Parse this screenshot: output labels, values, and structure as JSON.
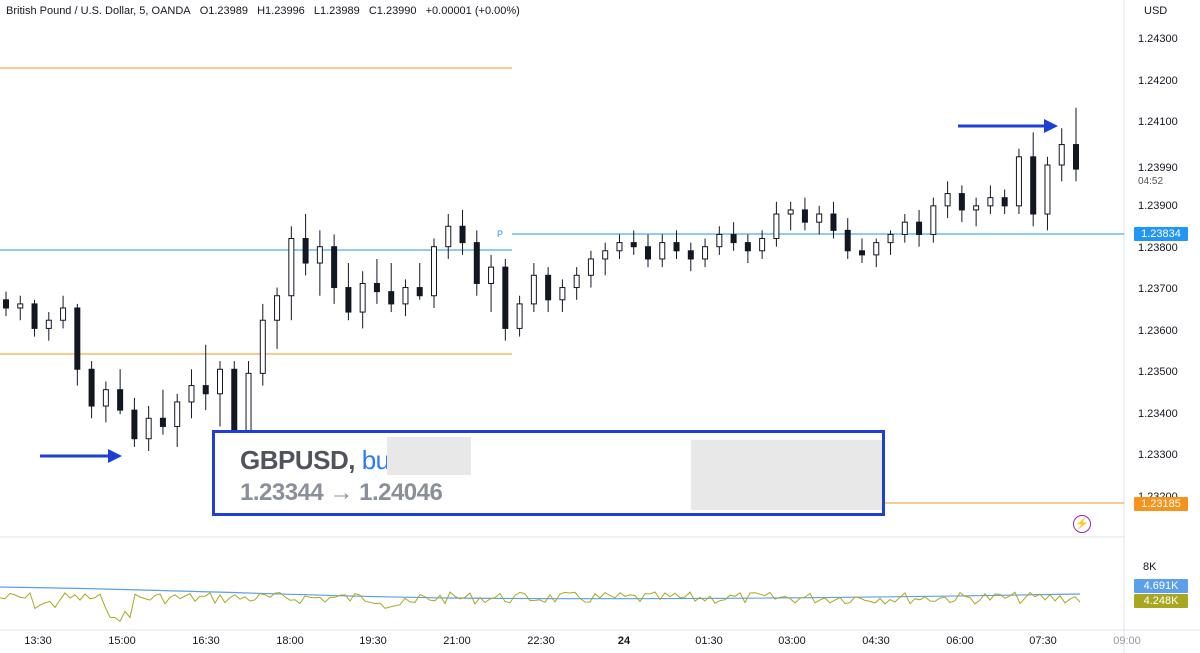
{
  "header": {
    "symbol_title": "British Pound / U.S. Dollar, 5, OANDA",
    "open": "O1.23989",
    "high": "H1.23996",
    "low": "L1.23989",
    "close": "C1.23990",
    "change": "+0.00001 (+0.00%)"
  },
  "price_axis": {
    "currency": "USD",
    "ticks": [
      "1.24300",
      "1.24200",
      "1.24100",
      "1.23990",
      "1.23900",
      "1.23800",
      "1.23700",
      "1.23600",
      "1.23500",
      "1.23400",
      "1.23300",
      "1.23200"
    ],
    "countdown": "04:52"
  },
  "price_labels": {
    "current_line": "1.23834",
    "lower_orange": "1.23185"
  },
  "time_axis": {
    "labels": [
      "13:30",
      "15:00",
      "16:30",
      "18:00",
      "19:30",
      "21:00",
      "22:30",
      "24",
      "01:30",
      "03:00",
      "04:30",
      "06:00",
      "07:30",
      "09:00"
    ]
  },
  "pivot_label": "P",
  "volume": {
    "axis_label": "8K",
    "ma_value": "4.691K",
    "vol_value": "4.248K"
  },
  "annotation": {
    "pair": "GBPUSD,",
    "side": "buy",
    "entry_exit": "1.23344 → 1.24046"
  },
  "colors": {
    "up": "#131722",
    "down": "#131722",
    "blue_line": "#2196f3",
    "orange_line": "#f7931a",
    "arrow": "#1e3fd6",
    "vol_ma": "#5ba0e8",
    "vol_line": "#a8a820",
    "accent_blue": "#2962ff"
  },
  "chart_data": {
    "type": "candlestick",
    "y_range": [
      1.2318,
      1.2435
    ],
    "ohlc_approx": [
      [
        1.2367,
        1.2369,
        1.2363,
        1.2365
      ],
      [
        1.2365,
        1.2368,
        1.2362,
        1.2366
      ],
      [
        1.2366,
        1.2367,
        1.2358,
        1.236
      ],
      [
        1.236,
        1.2364,
        1.2357,
        1.2362
      ],
      [
        1.2362,
        1.2368,
        1.236,
        1.2365
      ],
      [
        1.2365,
        1.2366,
        1.2346,
        1.235
      ],
      [
        1.235,
        1.2352,
        1.2338,
        1.2341
      ],
      [
        1.2341,
        1.2347,
        1.2337,
        1.2345
      ],
      [
        1.2345,
        1.235,
        1.2339,
        1.234
      ],
      [
        1.234,
        1.2343,
        1.2331,
        1.2333
      ],
      [
        1.2333,
        1.2341,
        1.233,
        1.2338
      ],
      [
        1.2338,
        1.2345,
        1.2334,
        1.2336
      ],
      [
        1.2336,
        1.2344,
        1.2331,
        1.2342
      ],
      [
        1.2342,
        1.235,
        1.2338,
        1.2346
      ],
      [
        1.2346,
        1.2356,
        1.234,
        1.2344
      ],
      [
        1.2344,
        1.2352,
        1.2336,
        1.235
      ],
      [
        1.235,
        1.2352,
        1.2324,
        1.2328
      ],
      [
        1.2328,
        1.2352,
        1.2323,
        1.2349
      ],
      [
        1.2349,
        1.2366,
        1.2346,
        1.2362
      ],
      [
        1.2362,
        1.237,
        1.2355,
        1.2368
      ],
      [
        1.2368,
        1.2385,
        1.2362,
        1.2382
      ],
      [
        1.2382,
        1.2388,
        1.2373,
        1.2376
      ],
      [
        1.2376,
        1.2384,
        1.2368,
        1.238
      ],
      [
        1.238,
        1.2383,
        1.2366,
        1.237
      ],
      [
        1.237,
        1.2376,
        1.2362,
        1.2364
      ],
      [
        1.2364,
        1.2374,
        1.236,
        1.2371
      ],
      [
        1.2371,
        1.2377,
        1.2366,
        1.2369
      ],
      [
        1.2369,
        1.2376,
        1.2364,
        1.2366
      ],
      [
        1.2366,
        1.2372,
        1.2363,
        1.237
      ],
      [
        1.237,
        1.2376,
        1.2367,
        1.2368
      ],
      [
        1.2368,
        1.2382,
        1.2365,
        1.238
      ],
      [
        1.238,
        1.2388,
        1.2377,
        1.2385
      ],
      [
        1.2385,
        1.2389,
        1.2378,
        1.2381
      ],
      [
        1.2381,
        1.2384,
        1.2368,
        1.2371
      ],
      [
        1.2371,
        1.2378,
        1.2364,
        1.2375
      ],
      [
        1.2375,
        1.2377,
        1.2357,
        1.236
      ],
      [
        1.236,
        1.2368,
        1.2358,
        1.2366
      ],
      [
        1.2366,
        1.2376,
        1.2364,
        1.2373
      ],
      [
        1.2373,
        1.2375,
        1.2364,
        1.2367
      ],
      [
        1.2367,
        1.2372,
        1.2364,
        1.237
      ],
      [
        1.237,
        1.2375,
        1.2367,
        1.2373
      ],
      [
        1.2373,
        1.2379,
        1.237,
        1.2377
      ],
      [
        1.2377,
        1.2381,
        1.2373,
        1.2379
      ],
      [
        1.2379,
        1.2383,
        1.2377,
        1.2381
      ],
      [
        1.2381,
        1.2384,
        1.2378,
        1.238
      ],
      [
        1.238,
        1.2383,
        1.2375,
        1.2377
      ],
      [
        1.2377,
        1.2383,
        1.2375,
        1.2381
      ],
      [
        1.2381,
        1.2384,
        1.2377,
        1.2379
      ],
      [
        1.2379,
        1.2381,
        1.2374,
        1.2377
      ],
      [
        1.2377,
        1.2382,
        1.2375,
        1.238
      ],
      [
        1.238,
        1.2385,
        1.2378,
        1.2383
      ],
      [
        1.2383,
        1.2386,
        1.2379,
        1.2381
      ],
      [
        1.2381,
        1.2383,
        1.2376,
        1.2379
      ],
      [
        1.2379,
        1.2384,
        1.2377,
        1.2382
      ],
      [
        1.2382,
        1.2391,
        1.238,
        1.2388
      ],
      [
        1.2388,
        1.2391,
        1.2384,
        1.2389
      ],
      [
        1.2389,
        1.2392,
        1.2384,
        1.2386
      ],
      [
        1.2386,
        1.239,
        1.2383,
        1.2388
      ],
      [
        1.2388,
        1.2391,
        1.2382,
        1.2384
      ],
      [
        1.2384,
        1.2387,
        1.2377,
        1.2379
      ],
      [
        1.2379,
        1.2382,
        1.2376,
        1.2378
      ],
      [
        1.2378,
        1.2382,
        1.2375,
        1.2381
      ],
      [
        1.2381,
        1.2384,
        1.2378,
        1.2383
      ],
      [
        1.2383,
        1.2388,
        1.2381,
        1.2386
      ],
      [
        1.2386,
        1.2389,
        1.238,
        1.2383
      ],
      [
        1.2383,
        1.2392,
        1.2381,
        1.239
      ],
      [
        1.239,
        1.2396,
        1.2387,
        1.2393
      ],
      [
        1.2393,
        1.2395,
        1.2386,
        1.2389
      ],
      [
        1.2389,
        1.2392,
        1.2385,
        1.239
      ],
      [
        1.239,
        1.2395,
        1.2388,
        1.2392
      ],
      [
        1.2392,
        1.2394,
        1.2388,
        1.239
      ],
      [
        1.239,
        1.2404,
        1.2388,
        1.2402
      ],
      [
        1.2402,
        1.2408,
        1.2385,
        1.2388
      ],
      [
        1.2388,
        1.2402,
        1.2384,
        1.24
      ],
      [
        1.24,
        1.2409,
        1.2396,
        1.2405
      ],
      [
        1.2405,
        1.2414,
        1.2396,
        1.2399
      ]
    ]
  }
}
